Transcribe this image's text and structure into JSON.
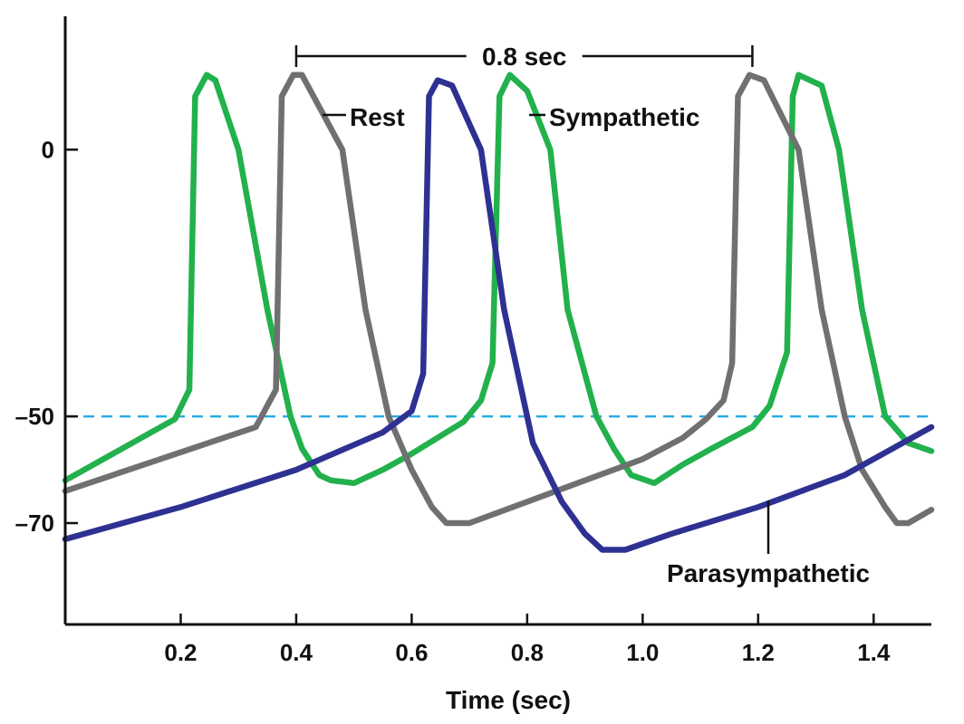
{
  "chart_data": {
    "type": "line",
    "xlabel": "Time (sec)",
    "ylabel": "",
    "xlim": [
      0,
      1.5
    ],
    "ylim": [
      -89,
      25
    ],
    "x_ticks": [
      "0.2",
      "0.4",
      "0.6",
      "0.8",
      "1.0",
      "1.2",
      "1.4"
    ],
    "x_tick_values": [
      0.2,
      0.4,
      0.6,
      0.8,
      1.0,
      1.2,
      1.4
    ],
    "y_ticks": [
      "0",
      "–50",
      "–70"
    ],
    "y_tick_values": [
      0,
      -50,
      -70
    ],
    "threshold": {
      "y": -50,
      "color": "#29abe2",
      "style": "dashed"
    },
    "interval": {
      "label": "0.8 sec",
      "x_start": 0.4,
      "x_end": 1.19
    },
    "series": [
      {
        "name": "Sympathetic",
        "color": "#22b14c",
        "points": [
          [
            0,
            -62
          ],
          [
            0.19,
            -50.5
          ],
          [
            0.215,
            -45
          ],
          [
            0.225,
            10
          ],
          [
            0.245,
            14
          ],
          [
            0.26,
            13
          ],
          [
            0.3,
            0
          ],
          [
            0.35,
            -30
          ],
          [
            0.39,
            -50
          ],
          [
            0.41,
            -56
          ],
          [
            0.44,
            -61
          ],
          [
            0.46,
            -62
          ],
          [
            0.5,
            -62.5
          ],
          [
            0.55,
            -60
          ],
          [
            0.6,
            -57
          ],
          [
            0.69,
            -51
          ],
          [
            0.72,
            -47
          ],
          [
            0.74,
            -40
          ],
          [
            0.752,
            10
          ],
          [
            0.77,
            14
          ],
          [
            0.8,
            11
          ],
          [
            0.84,
            0
          ],
          [
            0.87,
            -30
          ],
          [
            0.92,
            -50
          ],
          [
            0.95,
            -56
          ],
          [
            0.98,
            -61
          ],
          [
            1.02,
            -62.5
          ],
          [
            1.07,
            -59
          ],
          [
            1.12,
            -56
          ],
          [
            1.19,
            -52
          ],
          [
            1.22,
            -48
          ],
          [
            1.25,
            -38
          ],
          [
            1.26,
            10
          ],
          [
            1.27,
            14
          ],
          [
            1.31,
            12
          ],
          [
            1.34,
            0
          ],
          [
            1.38,
            -30
          ],
          [
            1.42,
            -50
          ],
          [
            1.46,
            -55
          ],
          [
            1.5,
            -56.5
          ]
        ]
      },
      {
        "name": "Rest",
        "color": "#707070",
        "points": [
          [
            0,
            -64
          ],
          [
            0.33,
            -52
          ],
          [
            0.365,
            -45
          ],
          [
            0.375,
            10
          ],
          [
            0.395,
            14
          ],
          [
            0.41,
            14
          ],
          [
            0.48,
            0
          ],
          [
            0.52,
            -30
          ],
          [
            0.56,
            -50
          ],
          [
            0.6,
            -60
          ],
          [
            0.635,
            -67
          ],
          [
            0.66,
            -70
          ],
          [
            0.7,
            -70
          ],
          [
            0.8,
            -66
          ],
          [
            0.9,
            -62
          ],
          [
            1.0,
            -58
          ],
          [
            1.07,
            -54
          ],
          [
            1.11,
            -50.5
          ],
          [
            1.14,
            -47
          ],
          [
            1.155,
            -40
          ],
          [
            1.165,
            10
          ],
          [
            1.185,
            14
          ],
          [
            1.21,
            13
          ],
          [
            1.27,
            0
          ],
          [
            1.31,
            -30
          ],
          [
            1.35,
            -50
          ],
          [
            1.38,
            -60
          ],
          [
            1.42,
            -67
          ],
          [
            1.44,
            -70
          ],
          [
            1.46,
            -70
          ],
          [
            1.5,
            -67.5
          ]
        ]
      },
      {
        "name": "Parasympathetic",
        "color": "#2e3192",
        "points": [
          [
            0,
            -73
          ],
          [
            0.2,
            -67
          ],
          [
            0.4,
            -60
          ],
          [
            0.55,
            -53
          ],
          [
            0.6,
            -49
          ],
          [
            0.62,
            -42
          ],
          [
            0.63,
            10
          ],
          [
            0.645,
            13
          ],
          [
            0.67,
            12
          ],
          [
            0.72,
            0
          ],
          [
            0.76,
            -30
          ],
          [
            0.81,
            -55
          ],
          [
            0.86,
            -66
          ],
          [
            0.9,
            -72
          ],
          [
            0.93,
            -75
          ],
          [
            0.97,
            -75
          ],
          [
            1.05,
            -72
          ],
          [
            1.2,
            -67
          ],
          [
            1.35,
            -61
          ],
          [
            1.5,
            -52
          ]
        ]
      }
    ],
    "annotations": [
      {
        "text": "Rest",
        "series": "Rest"
      },
      {
        "text": "Sympathetic",
        "series": "Sympathetic"
      },
      {
        "text": "Parasympathetic",
        "series": "Parasympathetic"
      }
    ],
    "grid": false,
    "legend": "none"
  }
}
